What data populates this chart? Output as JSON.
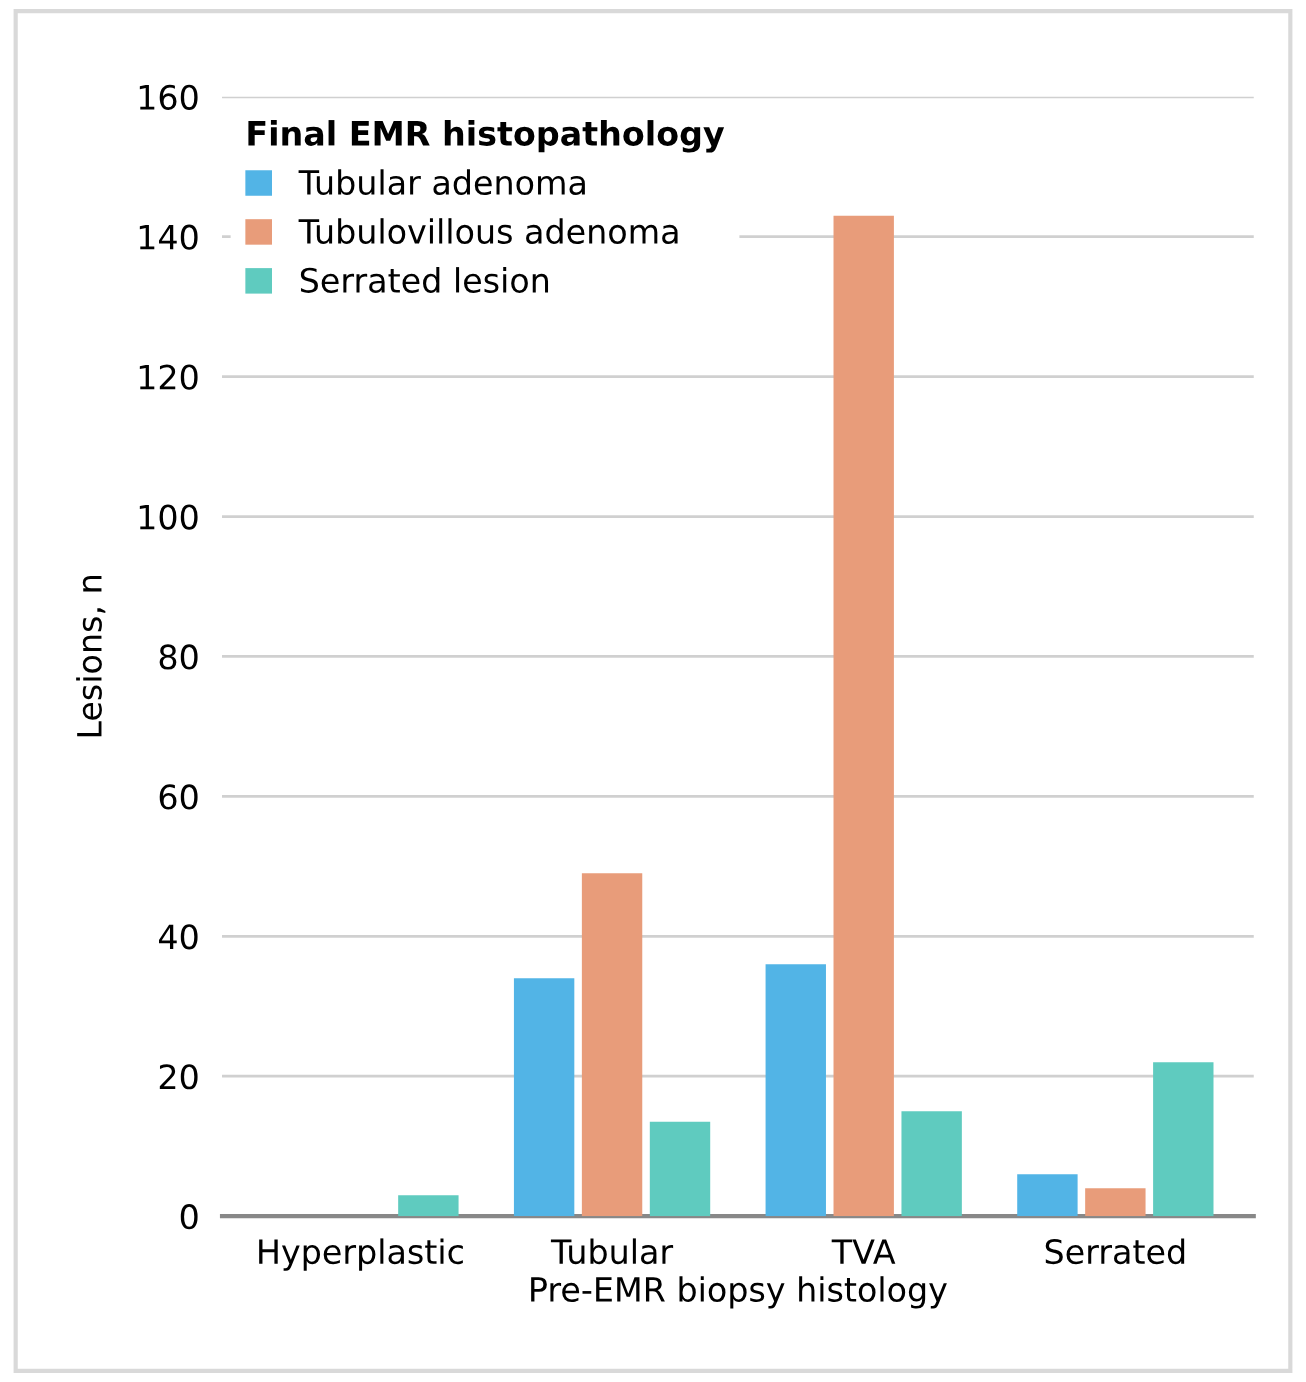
{
  "chart_data": {
    "type": "bar",
    "xlabel": "Pre-EMR biopsy histology",
    "ylabel": "Lesions, n",
    "legend_title": "Final EMR histopathology",
    "categories": [
      "Hyperplastic",
      "Tubular",
      "TVA",
      "Serrated"
    ],
    "series": [
      {
        "name": "Tubular adenoma",
        "color": "#52b4e6",
        "values": [
          0,
          34,
          36,
          6
        ]
      },
      {
        "name": "Tubulovillous adenoma",
        "color": "#e89c7a",
        "values": [
          0,
          49,
          143,
          4
        ]
      },
      {
        "name": "Serrated lesion",
        "color": "#5fcbbf",
        "values": [
          3,
          13.5,
          15,
          22
        ]
      }
    ],
    "ylim": [
      0,
      160
    ],
    "yticks": [
      0,
      20,
      40,
      60,
      80,
      100,
      120,
      140,
      160
    ],
    "grid": "y",
    "legend": "top left"
  }
}
